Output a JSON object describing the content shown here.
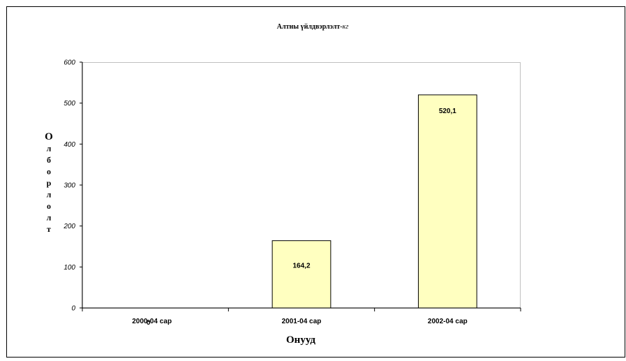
{
  "chart_data": {
    "type": "bar",
    "title": "Алтны үйлдвэрлэлт-",
    "title_unit": "кг",
    "ylabel": "Олборлолт",
    "xlabel": "Онууд",
    "categories": [
      "2000-04 сар",
      "2001-04 сар",
      "2002-04 сар"
    ],
    "values": [
      0,
      164.2,
      520.1
    ],
    "data_labels": [
      "0",
      "164,2",
      "520,1"
    ],
    "ylim": [
      0,
      600
    ],
    "yticks": [
      0,
      100,
      200,
      300,
      400,
      500,
      600
    ],
    "grid": false,
    "legend": "none",
    "bar_color": "#ffffc0",
    "border_color": "#000000",
    "plot_border_color": "#c0c0c0"
  }
}
